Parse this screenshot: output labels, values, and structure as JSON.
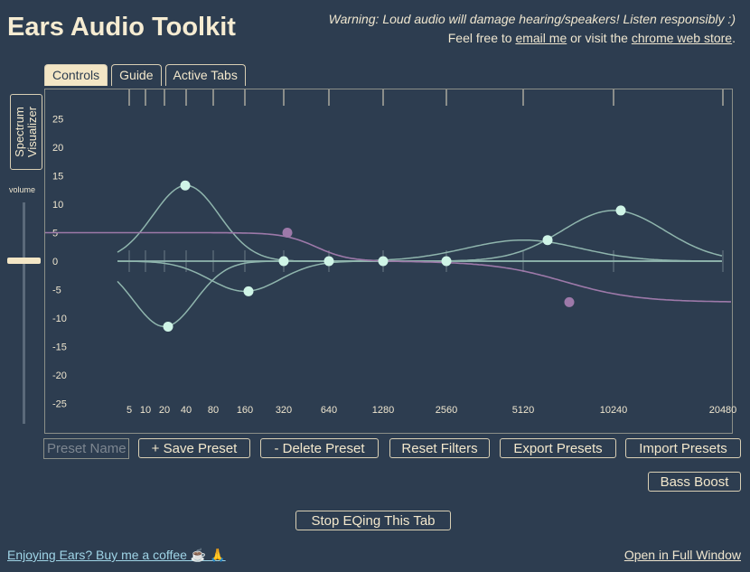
{
  "app": {
    "title": "Ears Audio Toolkit",
    "warning": "Warning: Loud audio will damage hearing/speakers! Listen responsibly :)",
    "links_prefix": "Feel free to ",
    "email_link": "email me",
    "links_middle": " or visit the ",
    "store_link": "chrome web store",
    "links_suffix": "."
  },
  "tabs": [
    {
      "label": "Controls",
      "active": true
    },
    {
      "label": "Guide",
      "active": false
    },
    {
      "label": "Active Tabs",
      "active": false
    }
  ],
  "sidebar": {
    "spectrum_label_line1": "Spectrum",
    "spectrum_label_line2": "Visualizer",
    "volume_label": "volume",
    "volume_level": 0.75
  },
  "eq": {
    "y_ticks": [
      "25",
      "20",
      "15",
      "10",
      "5",
      "0",
      "-5",
      "-10",
      "-15",
      "-20",
      "-25"
    ],
    "x_ticks": [
      "5",
      "10",
      "20",
      "40",
      "80",
      "160",
      "320",
      "640",
      "1280",
      "2560",
      "5120",
      "10240",
      "20480"
    ],
    "colors": {
      "curve": "#8fb5ad",
      "filter_curve": "#9d79a9",
      "node": "#cff4e6",
      "node_alt": "#9d79a9"
    },
    "nodes": [
      {
        "freq_label": "20",
        "gain": -11.5
      },
      {
        "freq_label": "40",
        "gain": 13.3
      },
      {
        "freq_label": "160",
        "gain": -5.3
      },
      {
        "freq_label": "320",
        "gain": 0
      },
      {
        "freq_label": "640",
        "gain": 0
      },
      {
        "freq_label": "1280",
        "gain": 0
      },
      {
        "freq_label": "2560",
        "gain": 0
      },
      {
        "freq_label": "5120",
        "gain": 3.7
      },
      {
        "freq_label": "10240",
        "gain": 8.9
      }
    ],
    "shelf_nodes": [
      {
        "freq_label": "320",
        "gain": 5
      },
      {
        "freq_label": "5120",
        "gain": -7.2
      }
    ]
  },
  "controls": {
    "preset_placeholder": "Preset Name",
    "save_preset": "+ Save Preset",
    "delete_preset": "- Delete Preset",
    "reset_filters": "Reset Filters",
    "export_presets": "Export Presets",
    "import_presets": "Import Presets",
    "bass_boost": "Bass Boost",
    "stop_eq": "Stop EQing This Tab"
  },
  "footer": {
    "coffee": "Enjoying Ears? Buy me a coffee ☕ 🙏",
    "full_window": "Open in Full Window"
  }
}
